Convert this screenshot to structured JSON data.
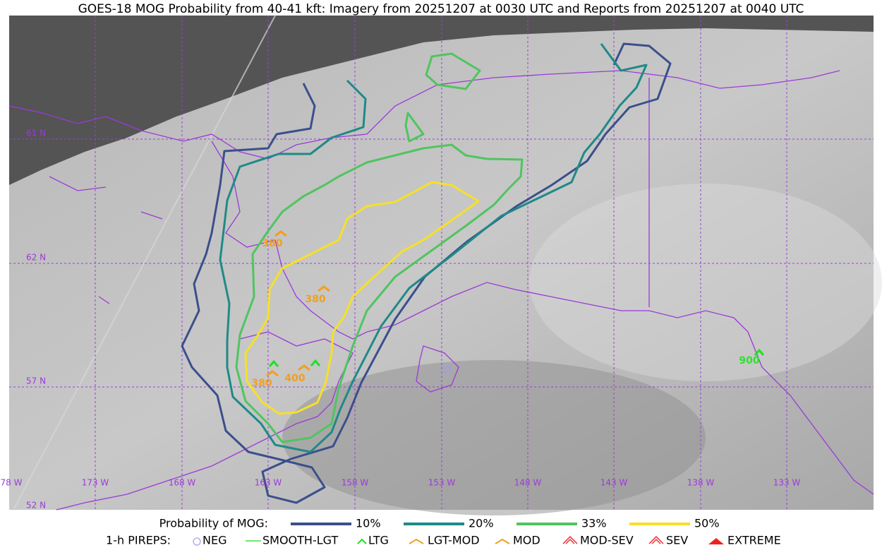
{
  "header": {
    "title": "GOES-18 MOG Probability from 40-41 kft: Imagery from 20251207 at 0030 UTC and Reports from 20251207 at 0040 UTC"
  },
  "map": {
    "lat_labels": [
      "61 N",
      "62 N",
      "57 N",
      "52 N"
    ],
    "lon_labels": [
      "78 W",
      "173 W",
      "168 W",
      "163 W",
      "158 W",
      "153 W",
      "148 W",
      "143 W",
      "138 W",
      "133 W"
    ],
    "report_labels": [
      "380",
      "380",
      "380",
      "400",
      "900"
    ]
  },
  "legend": {
    "probability": {
      "title": "Probability of MOG:",
      "items": [
        "10%",
        "20%",
        "33%",
        "50%"
      ]
    },
    "pireps": {
      "title": "1-h PIREPS:",
      "items": [
        "NEG",
        "SMOOTH-LGT",
        "LTG",
        "LGT-MOD",
        "MOD",
        "MOD-SEV",
        "SEV",
        "EXTREME"
      ]
    }
  }
}
